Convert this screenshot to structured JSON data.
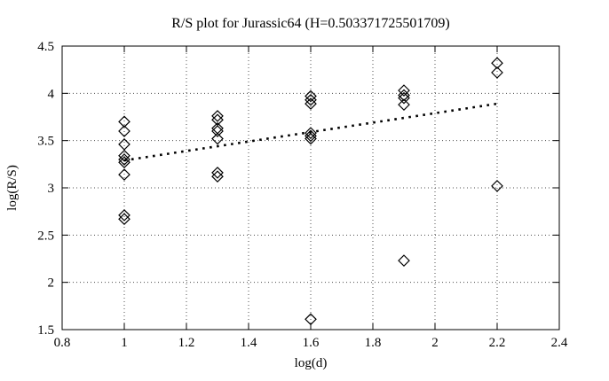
{
  "chart_data": {
    "type": "scatter",
    "title": "R/S plot for Jurassic64 (H=0.503371725501709)",
    "xlabel": "log(d)",
    "ylabel": "log(R/S)",
    "xlim": [
      0.8,
      2.4
    ],
    "ylim": [
      1.5,
      4.5
    ],
    "xticks": [
      0.8,
      1.0,
      1.2,
      1.4,
      1.6,
      1.8,
      2.0,
      2.2,
      2.4
    ],
    "xtick_labels": [
      "0.8",
      "1",
      "1.2",
      "1.4",
      "1.6",
      "1.8",
      "2",
      "2.2",
      "2.4"
    ],
    "yticks": [
      1.5,
      2.0,
      2.5,
      3.0,
      3.5,
      4.0,
      4.5
    ],
    "ytick_labels": [
      "1.5",
      "2",
      "2.5",
      "3",
      "3.5",
      "4",
      "4.5"
    ],
    "grid": true,
    "legend": "none",
    "marker": "open-diamond",
    "series": [
      {
        "name": "rs-points",
        "points": [
          [
            1.0,
            3.7
          ],
          [
            1.0,
            3.6
          ],
          [
            1.0,
            3.46
          ],
          [
            1.0,
            3.34
          ],
          [
            1.0,
            3.3
          ],
          [
            1.0,
            3.27
          ],
          [
            1.0,
            3.14
          ],
          [
            1.0,
            2.71
          ],
          [
            1.0,
            2.67
          ],
          [
            1.3,
            3.76
          ],
          [
            1.3,
            3.72
          ],
          [
            1.3,
            3.63
          ],
          [
            1.3,
            3.6
          ],
          [
            1.3,
            3.52
          ],
          [
            1.3,
            3.16
          ],
          [
            1.3,
            3.12
          ],
          [
            1.6,
            3.97
          ],
          [
            1.6,
            3.93
          ],
          [
            1.6,
            3.89
          ],
          [
            1.6,
            3.58
          ],
          [
            1.6,
            3.55
          ],
          [
            1.6,
            3.52
          ],
          [
            1.6,
            1.61
          ],
          [
            1.9,
            4.03
          ],
          [
            1.9,
            3.98
          ],
          [
            1.9,
            3.95
          ],
          [
            1.9,
            3.88
          ],
          [
            1.9,
            2.23
          ],
          [
            2.2,
            4.32
          ],
          [
            2.2,
            4.22
          ],
          [
            2.2,
            3.02
          ]
        ]
      }
    ],
    "fit_line": {
      "H": 0.503371725501709,
      "style": "dotted",
      "x_start": 1.0,
      "y_start": 3.29,
      "x_end": 2.2,
      "y_end": 3.89
    },
    "colors": {
      "marker": "#000000",
      "fit_line": "#000000",
      "grid": "#4d4d4d",
      "border": "#000000",
      "background": "#ffffff"
    }
  }
}
